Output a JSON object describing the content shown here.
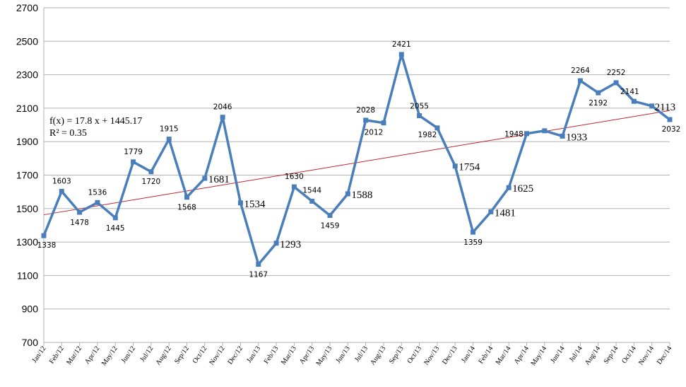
{
  "chart_data": {
    "type": "line",
    "title": "",
    "xlabel": "",
    "ylabel": "",
    "ylim": [
      700,
      2700
    ],
    "yticks": [
      700,
      900,
      1100,
      1300,
      1500,
      1700,
      1900,
      2100,
      2300,
      2500,
      2700
    ],
    "grid": "horizontal",
    "categories": [
      "Jan/12",
      "Feb/12",
      "Mar/12",
      "Apr/12",
      "May/12",
      "Jun/12",
      "Jul/12",
      "Aug/12",
      "Sep/12",
      "Oct/12",
      "Nov/12",
      "Dec/12",
      "Jan/13",
      "Feb/13",
      "Mar/13",
      "Apr/13",
      "May/13",
      "Jun/13",
      "Jul/13",
      "Aug/13",
      "Sep/13",
      "Oct/13",
      "Nov/13",
      "Dec/13",
      "Jan/14",
      "Feb/14",
      "Mar/14",
      "Apr/14",
      "May/14",
      "Jun/14",
      "Jul/14",
      "Aug/14",
      "Sep/14",
      "Oct/14",
      "Nov/14",
      "Dec/14"
    ],
    "series": [
      {
        "name": "",
        "color": "#4a7ebb",
        "values": [
          1338,
          1603,
          1478,
          1536,
          1445,
          1779,
          1720,
          1915,
          1568,
          1681,
          2046,
          1534,
          1167,
          1293,
          1630,
          1544,
          1459,
          1588,
          2028,
          2012,
          2421,
          2055,
          1982,
          1754,
          1359,
          1481,
          1625,
          1948,
          1965,
          1933,
          2264,
          2192,
          2252,
          2141,
          2113,
          2032
        ],
        "point_labels": [
          "1338",
          "1603",
          "1478",
          "1536",
          "1445",
          "1779",
          "1720",
          "1915",
          "1568",
          "1681",
          "2046",
          "1534",
          "1167",
          "1293",
          "1630",
          "1544",
          "1459",
          "1588",
          "2028",
          "2012",
          "2421",
          "2055",
          "1982",
          "1754",
          "1359",
          "1481",
          "1625",
          "1948",
          "",
          "1933",
          "2264",
          "2192",
          "2252",
          "2141",
          "2113",
          "2032"
        ]
      }
    ],
    "trendline": {
      "type": "linear",
      "slope": 17.8,
      "intercept": 1445.17,
      "color": "#c0262d",
      "equation_label": "f(x) = 17.8 x + 1445.17",
      "r2_label": "R² = 0.35"
    }
  }
}
